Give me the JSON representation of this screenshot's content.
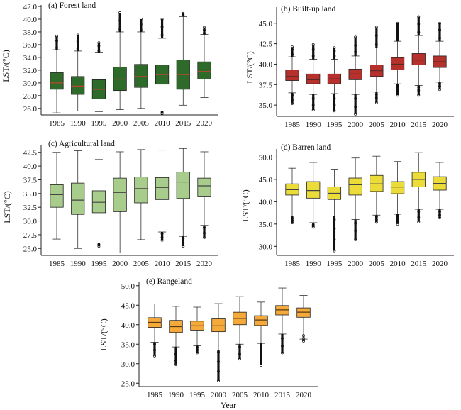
{
  "chart_data": [
    {
      "type": "box",
      "title": "(a) Forest land",
      "ylabel": "LST/(°C)",
      "categories": [
        "1985",
        "1990",
        "1995",
        "2000",
        "2005",
        "2010",
        "2015",
        "2020"
      ],
      "yticks": [
        "26.0",
        "28.0",
        "30.0",
        "32.0",
        "34.0",
        "36.0",
        "38.0",
        "40.0",
        "42.0"
      ],
      "ylim": [
        25.2,
        42.0
      ],
      "box_color": "#2e6b2a",
      "median_color": "#b8472a",
      "boxes": [
        {
          "min": 25.3,
          "q1": 29.0,
          "median": 30.0,
          "q3": 31.6,
          "max": 35.2,
          "outliers_high": [
            35.5,
            36.6,
            37.3
          ],
          "outliers_low": []
        },
        {
          "min": 25.6,
          "q1": 28.2,
          "median": 29.5,
          "q3": 31.0,
          "max": 35.0,
          "outliers_high": [
            35.4,
            36.5,
            37.5
          ],
          "outliers_low": []
        },
        {
          "min": 25.5,
          "q1": 27.5,
          "median": 29.0,
          "q3": 30.5,
          "max": 34.7,
          "outliers_high": [
            35.0,
            35.8,
            36.3
          ],
          "outliers_low": []
        },
        {
          "min": 25.8,
          "q1": 28.8,
          "median": 30.6,
          "q3": 32.5,
          "max": 38.0,
          "outliers_high": [
            38.4,
            39.8,
            41.0
          ],
          "outliers_low": []
        },
        {
          "min": 26.0,
          "q1": 29.3,
          "median": 31.0,
          "q3": 32.9,
          "max": 38.0,
          "outliers_high": [
            38.3,
            39.2,
            40.0
          ],
          "outliers_low": []
        },
        {
          "min": 25.6,
          "q1": 29.8,
          "median": 31.3,
          "q3": 32.8,
          "max": 37.0,
          "outliers_high": [
            37.5,
            38.8,
            40.0
          ],
          "outliers_low": [
            25.2,
            25.4
          ]
        },
        {
          "min": 26.5,
          "q1": 29.0,
          "median": 31.3,
          "q3": 33.6,
          "max": 40.4,
          "outliers_high": [
            40.6,
            40.9
          ],
          "outliers_low": []
        },
        {
          "min": 27.7,
          "q1": 30.6,
          "median": 31.8,
          "q3": 33.3,
          "max": 37.6,
          "outliers_high": [
            37.8,
            38.3,
            38.7
          ],
          "outliers_low": []
        }
      ]
    },
    {
      "type": "box",
      "title": "(b) Built-up land",
      "ylabel": "LST/(°C)",
      "categories": [
        "1985",
        "1990",
        "1995",
        "2000",
        "2005",
        "2010",
        "2015",
        "2020"
      ],
      "yticks": [
        "35.0",
        "37.5",
        "40.0",
        "42.5",
        "45.0"
      ],
      "ylim": [
        33.8,
        46.8
      ],
      "box_color": "#b7312c",
      "median_color": "#5a2a20",
      "boxes": [
        {
          "min": 36.5,
          "q1": 38.0,
          "median": 38.5,
          "q3": 39.3,
          "max": 40.9,
          "outliers_high": [
            41.2,
            41.8,
            42.1
          ],
          "outliers_low": [
            35.2,
            35.6,
            36.2
          ]
        },
        {
          "min": 36.3,
          "q1": 37.6,
          "median": 38.1,
          "q3": 38.8,
          "max": 40.6,
          "outliers_high": [
            41.0,
            41.8,
            42.4
          ],
          "outliers_low": [
            34.4,
            35.0,
            35.8
          ]
        },
        {
          "min": 36.4,
          "q1": 37.6,
          "median": 38.2,
          "q3": 38.8,
          "max": 40.6,
          "outliers_high": [
            41.0,
            41.6,
            42.0
          ],
          "outliers_low": [
            34.3,
            35.0,
            35.8
          ]
        },
        {
          "min": 36.3,
          "q1": 38.1,
          "median": 38.8,
          "q3": 39.4,
          "max": 41.0,
          "outliers_high": [
            41.5,
            42.3,
            43.3
          ],
          "outliers_low": [
            33.9,
            34.8,
            35.8
          ]
        },
        {
          "min": 36.6,
          "q1": 38.5,
          "median": 39.2,
          "q3": 39.9,
          "max": 42.0,
          "outliers_high": [
            42.4,
            43.5,
            44.5
          ],
          "outliers_low": [
            35.3,
            35.9,
            36.3
          ]
        },
        {
          "min": 37.6,
          "q1": 39.3,
          "median": 40.0,
          "q3": 40.8,
          "max": 42.8,
          "outliers_high": [
            43.2,
            44.2,
            45.0
          ],
          "outliers_low": [
            36.2,
            36.8,
            37.3
          ]
        },
        {
          "min": 37.4,
          "q1": 39.9,
          "median": 40.5,
          "q3": 41.3,
          "max": 43.5,
          "outliers_high": [
            43.9,
            44.9,
            45.8
          ],
          "outliers_low": [
            36.2,
            36.8,
            37.2
          ]
        },
        {
          "min": 37.8,
          "q1": 39.6,
          "median": 40.3,
          "q3": 41.0,
          "max": 42.8,
          "outliers_high": [
            43.2,
            44.2,
            45.0
          ],
          "outliers_low": [
            36.9,
            37.3,
            37.6
          ]
        }
      ]
    },
    {
      "type": "box",
      "title": "(c) Agricultural land",
      "ylabel": "LST/(°C)",
      "categories": [
        "1985",
        "1990",
        "1995",
        "2000",
        "2005",
        "2010",
        "2015",
        "2020"
      ],
      "yticks": [
        "25.0",
        "27.5",
        "30.0",
        "32.5",
        "35.0",
        "37.5",
        "40.0",
        "42.5"
      ],
      "ylim": [
        24.0,
        43.5
      ],
      "box_color": "#a8cc8c",
      "median_color": "#444444",
      "boxes": [
        {
          "min": 26.7,
          "q1": 32.5,
          "median": 34.8,
          "q3": 36.6,
          "max": 42.5,
          "outliers_high": [],
          "outliers_low": []
        },
        {
          "min": 25.0,
          "q1": 31.2,
          "median": 33.8,
          "q3": 36.9,
          "max": 42.8,
          "outliers_high": [],
          "outliers_low": []
        },
        {
          "min": 26.0,
          "q1": 31.5,
          "median": 33.4,
          "q3": 35.5,
          "max": 41.2,
          "outliers_high": [],
          "outliers_low": [
            25.4,
            25.7
          ]
        },
        {
          "min": 24.2,
          "q1": 31.7,
          "median": 35.2,
          "q3": 37.8,
          "max": 42.6,
          "outliers_high": [],
          "outliers_low": []
        },
        {
          "min": 26.6,
          "q1": 33.3,
          "median": 35.9,
          "q3": 38.0,
          "max": 43.0,
          "outliers_high": [],
          "outliers_low": []
        },
        {
          "min": 28.0,
          "q1": 33.9,
          "median": 36.1,
          "q3": 37.9,
          "max": 42.9,
          "outliers_high": [],
          "outliers_low": [
            26.5,
            27.0,
            27.7
          ]
        },
        {
          "min": 27.2,
          "q1": 34.1,
          "median": 37.1,
          "q3": 38.9,
          "max": 43.2,
          "outliers_high": [],
          "outliers_low": [
            25.4,
            26.0,
            26.8
          ]
        },
        {
          "min": 29.2,
          "q1": 34.4,
          "median": 36.4,
          "q3": 37.8,
          "max": 42.6,
          "outliers_high": [],
          "outliers_low": [
            27.0,
            27.8,
            28.8
          ]
        }
      ]
    },
    {
      "type": "box",
      "title": "(d) Barren land",
      "ylabel": "LST/(°C)",
      "categories": [
        "1985",
        "1990",
        "1995",
        "2000",
        "2005",
        "2010",
        "2015",
        "2020"
      ],
      "yticks": [
        "30.0",
        "35.0",
        "40.0",
        "45.0",
        "50.0"
      ],
      "ylim": [
        28.3,
        51.5
      ],
      "box_color": "#ecdc3a",
      "median_color": "#444444",
      "boxes": [
        {
          "min": 36.8,
          "q1": 41.5,
          "median": 42.7,
          "q3": 44.0,
          "max": 47.5,
          "outliers_high": [],
          "outliers_low": [
            35.3,
            35.8,
            36.3
          ]
        },
        {
          "min": 35.3,
          "q1": 40.8,
          "median": 42.5,
          "q3": 44.5,
          "max": 48.8,
          "outliers_high": [],
          "outliers_low": [
            34.3,
            34.8
          ]
        },
        {
          "min": 36.8,
          "q1": 40.5,
          "median": 41.9,
          "q3": 43.3,
          "max": 47.3,
          "outliers_high": [],
          "outliers_low": [
            29.0,
            31.5,
            34.0,
            36.0
          ]
        },
        {
          "min": 36.0,
          "q1": 41.5,
          "median": 43.8,
          "q3": 45.3,
          "max": 49.8,
          "outliers_high": [],
          "outliers_low": [
            31.5,
            33.5,
            35.2
          ]
        },
        {
          "min": 37.0,
          "q1": 42.3,
          "median": 44.0,
          "q3": 45.9,
          "max": 50.2,
          "outliers_high": [],
          "outliers_low": [
            35.4,
            36.0,
            36.6
          ]
        },
        {
          "min": 37.2,
          "q1": 41.8,
          "median": 43.3,
          "q3": 44.5,
          "max": 49.0,
          "outliers_high": [],
          "outliers_low": [
            35.0,
            35.8,
            36.6
          ]
        },
        {
          "min": 38.3,
          "q1": 43.3,
          "median": 45.0,
          "q3": 46.6,
          "max": 51.0,
          "outliers_high": [],
          "outliers_low": [
            35.5,
            36.5,
            37.8
          ]
        },
        {
          "min": 38.3,
          "q1": 42.6,
          "median": 44.1,
          "q3": 45.6,
          "max": 48.8,
          "outliers_high": [],
          "outliers_low": [
            36.4,
            37.0,
            37.8
          ]
        }
      ]
    },
    {
      "type": "box",
      "title": "(e) Rangeland",
      "ylabel": "LST/(°C)",
      "xlabel": "Year",
      "categories": [
        "1985",
        "1990",
        "1995",
        "2000",
        "2005",
        "2010",
        "2015",
        "2020"
      ],
      "yticks": [
        "25.0",
        "30.0",
        "35.0",
        "40.0",
        "45.0",
        "50.0"
      ],
      "ylim": [
        24.5,
        50.5
      ],
      "box_color": "#f4a93a",
      "median_color": "#5a3a10",
      "boxes": [
        {
          "min": 35.5,
          "q1": 39.3,
          "median": 40.6,
          "q3": 41.8,
          "max": 45.3,
          "outliers_high": [],
          "outliers_low": [
            32.0,
            33.5,
            35.0
          ]
        },
        {
          "min": 34.3,
          "q1": 38.0,
          "median": 39.5,
          "q3": 41.1,
          "max": 44.7,
          "outliers_high": [],
          "outliers_low": [
            29.8,
            30.8,
            32.5
          ]
        },
        {
          "min": 34.6,
          "q1": 38.6,
          "median": 39.7,
          "q3": 40.9,
          "max": 44.5,
          "outliers_high": [],
          "outliers_low": [
            32.8,
            33.5,
            34.2
          ]
        },
        {
          "min": 33.5,
          "q1": 38.2,
          "median": 39.7,
          "q3": 41.5,
          "max": 45.4,
          "outliers_high": [],
          "outliers_low": [
            25.6,
            28.0,
            30.5,
            33.0
          ]
        },
        {
          "min": 35.0,
          "q1": 40.0,
          "median": 41.6,
          "q3": 43.2,
          "max": 47.2,
          "outliers_high": [],
          "outliers_low": [
            31.2,
            32.5,
            34.3
          ]
        },
        {
          "min": 35.2,
          "q1": 39.8,
          "median": 41.2,
          "q3": 42.3,
          "max": 45.8,
          "outliers_high": [],
          "outliers_low": [
            29.6,
            31.5,
            34.0
          ]
        },
        {
          "min": 37.6,
          "q1": 42.5,
          "median": 43.8,
          "q3": 44.9,
          "max": 49.4,
          "outliers_high": [],
          "outliers_low": [
            32.8,
            34.5,
            36.5
          ]
        },
        {
          "min": 36.3,
          "q1": 41.9,
          "median": 43.2,
          "q3": 44.3,
          "max": 47.5,
          "outliers_high": [],
          "outliers_low": [
            35.8,
            36.5,
            37.2
          ]
        }
      ]
    }
  ]
}
